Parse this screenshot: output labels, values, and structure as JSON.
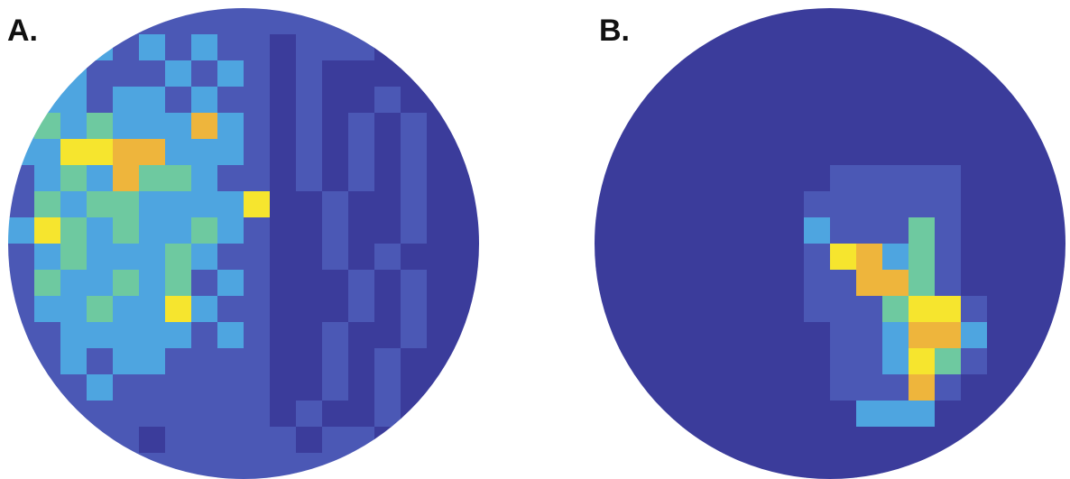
{
  "chart_data": [
    {
      "type": "heatmap",
      "title": "A.",
      "colors": [
        "#3b3c9b",
        "#4b58b5",
        "#4ea5e0",
        "#6ec9a0",
        "#eeb53c",
        "#f6e52e"
      ],
      "values": [
        [
          1,
          1,
          1,
          1,
          1,
          1,
          1,
          1,
          1,
          1,
          1,
          1,
          1,
          1,
          1,
          1,
          1,
          1
        ],
        [
          1,
          1,
          1,
          2,
          1,
          2,
          1,
          2,
          1,
          1,
          0,
          1,
          1,
          1,
          0,
          0,
          0,
          0
        ],
        [
          1,
          5,
          2,
          1,
          1,
          1,
          2,
          1,
          2,
          1,
          0,
          1,
          0,
          0,
          0,
          0,
          0,
          0
        ],
        [
          4,
          2,
          2,
          1,
          2,
          2,
          1,
          2,
          1,
          1,
          0,
          1,
          0,
          0,
          1,
          0,
          0,
          0
        ],
        [
          2,
          3,
          2,
          3,
          2,
          2,
          2,
          4,
          2,
          1,
          0,
          1,
          0,
          1,
          0,
          1,
          0,
          0
        ],
        [
          2,
          2,
          5,
          5,
          4,
          4,
          2,
          2,
          2,
          1,
          0,
          1,
          0,
          1,
          0,
          1,
          0,
          0
        ],
        [
          1,
          2,
          3,
          2,
          4,
          3,
          3,
          2,
          1,
          1,
          0,
          1,
          0,
          1,
          0,
          1,
          0,
          0
        ],
        [
          1,
          3,
          2,
          3,
          3,
          2,
          2,
          2,
          2,
          5,
          0,
          0,
          1,
          0,
          0,
          1,
          0,
          0
        ],
        [
          2,
          5,
          3,
          2,
          3,
          2,
          2,
          3,
          2,
          1,
          0,
          0,
          1,
          0,
          0,
          1,
          0,
          0
        ],
        [
          1,
          2,
          3,
          2,
          2,
          2,
          3,
          2,
          1,
          1,
          0,
          0,
          1,
          0,
          1,
          0,
          0,
          0
        ],
        [
          1,
          3,
          2,
          2,
          3,
          2,
          3,
          1,
          2,
          1,
          0,
          0,
          0,
          1,
          0,
          1,
          0,
          0
        ],
        [
          1,
          2,
          2,
          3,
          2,
          2,
          5,
          2,
          1,
          1,
          0,
          0,
          0,
          1,
          0,
          1,
          0,
          0
        ],
        [
          1,
          1,
          2,
          2,
          2,
          2,
          2,
          1,
          2,
          1,
          0,
          0,
          1,
          0,
          0,
          1,
          0,
          0
        ],
        [
          1,
          1,
          2,
          1,
          2,
          2,
          1,
          1,
          1,
          1,
          0,
          0,
          1,
          0,
          1,
          0,
          0,
          0
        ],
        [
          1,
          1,
          1,
          2,
          1,
          1,
          1,
          1,
          1,
          1,
          0,
          0,
          1,
          0,
          1,
          0,
          0,
          0
        ],
        [
          1,
          1,
          1,
          1,
          1,
          1,
          1,
          1,
          1,
          1,
          0,
          1,
          0,
          0,
          1,
          0,
          0,
          0
        ],
        [
          1,
          1,
          1,
          1,
          1,
          0,
          1,
          1,
          1,
          1,
          1,
          0,
          1,
          1,
          0,
          0,
          0,
          0
        ],
        [
          1,
          1,
          1,
          1,
          1,
          1,
          1,
          1,
          1,
          1,
          1,
          1,
          1,
          1,
          1,
          1,
          1,
          1
        ]
      ]
    },
    {
      "type": "heatmap",
      "title": "B.",
      "colors": [
        "#3b3c9b",
        "#4b58b5",
        "#4ea5e0",
        "#6ec9a0",
        "#eeb53c",
        "#f6e52e"
      ],
      "values": [
        [
          0,
          0,
          0,
          0,
          0,
          0,
          0,
          0,
          0,
          0,
          0,
          0,
          0,
          0,
          0,
          0,
          0,
          0
        ],
        [
          0,
          0,
          0,
          0,
          0,
          0,
          0,
          0,
          0,
          0,
          0,
          0,
          0,
          0,
          0,
          0,
          0,
          0
        ],
        [
          0,
          0,
          0,
          0,
          0,
          0,
          0,
          0,
          0,
          0,
          0,
          0,
          0,
          0,
          0,
          0,
          0,
          0
        ],
        [
          0,
          0,
          0,
          0,
          0,
          0,
          0,
          0,
          0,
          0,
          0,
          0,
          0,
          0,
          0,
          0,
          0,
          0
        ],
        [
          0,
          0,
          0,
          0,
          0,
          0,
          0,
          0,
          0,
          0,
          0,
          0,
          0,
          0,
          0,
          0,
          0,
          0
        ],
        [
          0,
          0,
          0,
          0,
          0,
          0,
          0,
          0,
          0,
          0,
          0,
          0,
          0,
          0,
          0,
          0,
          0,
          0
        ],
        [
          0,
          0,
          0,
          0,
          0,
          0,
          0,
          0,
          0,
          1,
          1,
          1,
          1,
          1,
          0,
          0,
          0,
          0
        ],
        [
          0,
          0,
          0,
          0,
          0,
          0,
          0,
          0,
          1,
          1,
          1,
          1,
          1,
          1,
          0,
          0,
          0,
          0
        ],
        [
          0,
          0,
          0,
          0,
          0,
          0,
          0,
          0,
          2,
          1,
          1,
          1,
          3,
          1,
          0,
          0,
          0,
          0
        ],
        [
          0,
          0,
          0,
          0,
          0,
          0,
          0,
          0,
          1,
          5,
          4,
          2,
          3,
          1,
          0,
          0,
          0,
          0
        ],
        [
          0,
          0,
          0,
          0,
          0,
          0,
          0,
          0,
          1,
          1,
          4,
          4,
          3,
          1,
          0,
          0,
          0,
          0
        ],
        [
          0,
          0,
          0,
          0,
          0,
          0,
          0,
          0,
          1,
          1,
          1,
          3,
          5,
          5,
          1,
          0,
          0,
          0
        ],
        [
          0,
          0,
          0,
          0,
          0,
          0,
          0,
          0,
          0,
          1,
          1,
          2,
          4,
          4,
          2,
          0,
          0,
          0
        ],
        [
          0,
          0,
          0,
          0,
          0,
          0,
          0,
          0,
          0,
          1,
          1,
          2,
          5,
          3,
          1,
          0,
          0,
          0
        ],
        [
          0,
          0,
          0,
          0,
          0,
          0,
          0,
          0,
          0,
          1,
          1,
          1,
          4,
          1,
          0,
          0,
          0,
          0
        ],
        [
          0,
          0,
          0,
          0,
          0,
          0,
          0,
          0,
          0,
          0,
          2,
          2,
          2,
          0,
          0,
          0,
          0,
          0
        ],
        [
          0,
          0,
          0,
          0,
          0,
          0,
          0,
          0,
          0,
          0,
          0,
          0,
          0,
          0,
          0,
          0,
          0,
          0
        ],
        [
          0,
          0,
          0,
          0,
          0,
          0,
          0,
          0,
          0,
          0,
          0,
          0,
          0,
          0,
          0,
          0,
          0,
          0
        ]
      ]
    }
  ]
}
